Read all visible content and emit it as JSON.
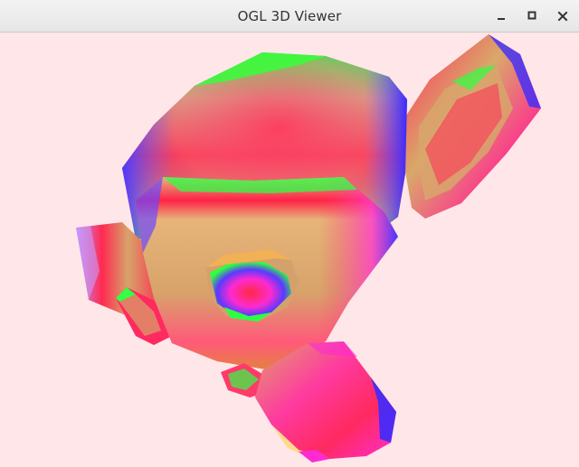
{
  "window": {
    "title": "OGL 3D Viewer"
  },
  "controls": {
    "minimize_icon": "minimize-icon",
    "maximize_icon": "maximize-icon",
    "close_icon": "close-icon"
  },
  "viewport": {
    "background": "#ffe6e8",
    "model_colors": [
      "#ff0000",
      "#00ff00",
      "#0000ff",
      "#ff00ff",
      "#d9b07a"
    ]
  }
}
